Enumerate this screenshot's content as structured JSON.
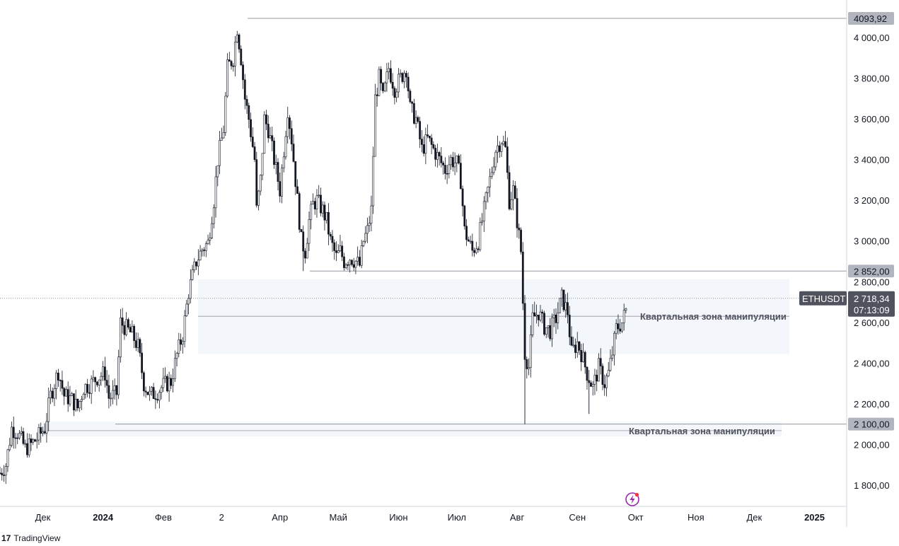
{
  "colors": {
    "candle": "#131722",
    "grid_line": "#9598a1",
    "zone_fill": "#f3f6fb",
    "badge_bg": "#b2b5be",
    "badge_dark_bg": "#50535e",
    "axis_text": "#131722"
  },
  "branding": {
    "logo_icon": "tradingview-logo-icon",
    "logo_mark": "17",
    "name": "TradingView"
  },
  "symbol_badge": {
    "symbol": "ETHUSDT",
    "price": "2 718,34",
    "countdown": "07:13:09"
  },
  "price_badges": [
    {
      "label": "4093,92",
      "value": 4093.92
    },
    {
      "label": "2 852,00",
      "value": 2852
    },
    {
      "label": "2 100,00",
      "value": 2100
    }
  ],
  "zones": [
    {
      "label": "Квартальная зона манипуляции",
      "top": 2812,
      "bottom": 2445,
      "mid": 2630
    },
    {
      "label": "Квартальная зона манипуляции",
      "top": 2112,
      "bottom": 2040,
      "mid": 2068
    }
  ],
  "lightning_icon": "lightning-icon",
  "chart_data": {
    "type": "candlestick",
    "symbol": "ETHUSDT",
    "y_axis": {
      "min": 1700,
      "max": 4180,
      "ticks": [
        1800,
        2000,
        2200,
        2400,
        2600,
        2800,
        3000,
        3200,
        3400,
        3600,
        3800,
        4000
      ],
      "tick_labels": [
        "1 800,00",
        "2 000,00",
        "2 200,00",
        "2 400,00",
        "2 600,00",
        "2 800,00",
        "3 000,00",
        "3 200,00",
        "3 400,00",
        "3 600,00",
        "3 800,00",
        "4 000,00"
      ]
    },
    "x_axis": {
      "range": [
        "2023-11-09",
        "2025-01-15"
      ],
      "ticks": [
        {
          "date": "2023-12-01",
          "label": "Дек",
          "bold": false
        },
        {
          "date": "2024-01-01",
          "label": "2024",
          "bold": true
        },
        {
          "date": "2024-02-01",
          "label": "Фев",
          "bold": false
        },
        {
          "date": "2024-03-02",
          "label": "2",
          "bold": false
        },
        {
          "date": "2024-04-01",
          "label": "Апр",
          "bold": false
        },
        {
          "date": "2024-05-01",
          "label": "Май",
          "bold": false
        },
        {
          "date": "2024-06-01",
          "label": "Июн",
          "bold": false
        },
        {
          "date": "2024-07-01",
          "label": "Июл",
          "bold": false
        },
        {
          "date": "2024-08-01",
          "label": "Авг",
          "bold": false
        },
        {
          "date": "2024-09-01",
          "label": "Сен",
          "bold": false
        },
        {
          "date": "2024-10-01",
          "label": "Окт",
          "bold": false
        },
        {
          "date": "2024-11-01",
          "label": "Ноя",
          "bold": false
        },
        {
          "date": "2024-12-01",
          "label": "Дек",
          "bold": false
        },
        {
          "date": "2025-01-01",
          "label": "2025",
          "bold": true
        }
      ]
    },
    "series": [
      {
        "name": "ETHUSDT",
        "closes": [
          [
            20231109,
            1860
          ],
          [
            20231112,
            1900
          ],
          [
            20231115,
            2080
          ],
          [
            20231118,
            2060
          ],
          [
            20231122,
            1980
          ],
          [
            20231125,
            2000
          ],
          [
            20231128,
            2030
          ],
          [
            20231202,
            2080
          ],
          [
            20231205,
            2240
          ],
          [
            20231209,
            2360
          ],
          [
            20231212,
            2240
          ],
          [
            20231216,
            2220
          ],
          [
            20231219,
            2180
          ],
          [
            20231222,
            2280
          ],
          [
            20231226,
            2300
          ],
          [
            20231229,
            2330
          ],
          [
            20240102,
            2350
          ],
          [
            20240104,
            2230
          ],
          [
            20240108,
            2250
          ],
          [
            20240110,
            2600
          ],
          [
            20240112,
            2580
          ],
          [
            20240116,
            2540
          ],
          [
            20240119,
            2480
          ],
          [
            20240122,
            2300
          ],
          [
            20240125,
            2240
          ],
          [
            20240129,
            2260
          ],
          [
            20240201,
            2290
          ],
          [
            20240205,
            2310
          ],
          [
            20240208,
            2440
          ],
          [
            20240211,
            2540
          ],
          [
            20240214,
            2750
          ],
          [
            20240218,
            2900
          ],
          [
            20240221,
            2960
          ],
          [
            20240224,
            2990
          ],
          [
            20240227,
            3200
          ],
          [
            20240229,
            3400
          ],
          [
            20240303,
            3550
          ],
          [
            20240305,
            3850
          ],
          [
            20240308,
            3900
          ],
          [
            20240310,
            4050
          ],
          [
            20240312,
            3900
          ],
          [
            20240314,
            3700
          ],
          [
            20240316,
            3600
          ],
          [
            20240319,
            3400
          ],
          [
            20240320,
            3150
          ],
          [
            20240322,
            3300
          ],
          [
            20240324,
            3600
          ],
          [
            20240326,
            3550
          ],
          [
            20240328,
            3450
          ],
          [
            20240330,
            3350
          ],
          [
            20240401,
            3250
          ],
          [
            20240403,
            3450
          ],
          [
            20240405,
            3650
          ],
          [
            20240407,
            3500
          ],
          [
            20240410,
            3200
          ],
          [
            20240412,
            3000
          ],
          [
            20240414,
            2950
          ],
          [
            20240416,
            3100
          ],
          [
            20240418,
            3180
          ],
          [
            20240420,
            3200
          ],
          [
            20240423,
            3150
          ],
          [
            20240425,
            3100
          ],
          [
            20240427,
            3000
          ],
          [
            20240430,
            2920
          ],
          [
            20240502,
            2950
          ],
          [
            20240504,
            2900
          ],
          [
            20240507,
            2920
          ],
          [
            20240510,
            2900
          ],
          [
            20240512,
            2880
          ],
          [
            20240514,
            3000
          ],
          [
            20240516,
            3050
          ],
          [
            20240518,
            3150
          ],
          [
            20240520,
            3700
          ],
          [
            20240522,
            3800
          ],
          [
            20240524,
            3700
          ],
          [
            20240527,
            3850
          ],
          [
            20240530,
            3750
          ],
          [
            20240602,
            3800
          ],
          [
            20240605,
            3850
          ],
          [
            20240607,
            3650
          ],
          [
            20240610,
            3600
          ],
          [
            20240613,
            3450
          ],
          [
            20240616,
            3500
          ],
          [
            20240619,
            3450
          ],
          [
            20240622,
            3400
          ],
          [
            20240625,
            3350
          ],
          [
            20240628,
            3400
          ],
          [
            20240701,
            3380
          ],
          [
            20240703,
            3300
          ],
          [
            20240705,
            3050
          ],
          [
            20240707,
            3000
          ],
          [
            20240709,
            2950
          ],
          [
            20240712,
            3000
          ],
          [
            20240715,
            3150
          ],
          [
            20240718,
            3300
          ],
          [
            20240721,
            3450
          ],
          [
            20240724,
            3500
          ],
          [
            20240726,
            3450
          ],
          [
            20240728,
            3200
          ],
          [
            20240730,
            3250
          ],
          [
            20240801,
            3100
          ],
          [
            20240803,
            2950
          ],
          [
            20240805,
            2450
          ],
          [
            20240807,
            2380
          ],
          [
            20240809,
            2620
          ],
          [
            20240812,
            2650
          ],
          [
            20240815,
            2580
          ],
          [
            20240818,
            2560
          ],
          [
            20240821,
            2620
          ],
          [
            20240824,
            2720
          ],
          [
            20240827,
            2650
          ],
          [
            20240829,
            2450
          ],
          [
            20240901,
            2500
          ],
          [
            20240903,
            2450
          ],
          [
            20240906,
            2350
          ],
          [
            20240909,
            2280
          ],
          [
            20240912,
            2380
          ],
          [
            20240915,
            2300
          ],
          [
            20240917,
            2350
          ],
          [
            20240919,
            2450
          ],
          [
            20240921,
            2570
          ],
          [
            20240924,
            2600
          ],
          [
            20240926,
            2660
          ],
          [
            20240927,
            2718
          ]
        ]
      }
    ]
  }
}
